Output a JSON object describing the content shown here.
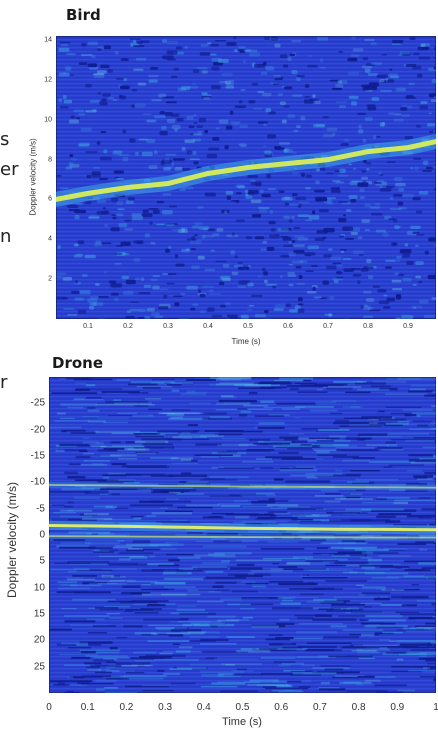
{
  "edge_fragments": [
    "s",
    "er",
    "n",
    "r"
  ],
  "chart_data": [
    {
      "type": "heatmap",
      "title": "Bird",
      "xlabel": "Time (s)",
      "ylabel": "Doppler velocity (m/s)",
      "xlim": [
        0.02,
        0.97
      ],
      "ylim": [
        14.2,
        0
      ],
      "xticks": [
        0.1,
        0.2,
        0.3,
        0.4,
        0.5,
        0.6,
        0.7,
        0.8,
        0.9
      ],
      "yticks": [
        2,
        4,
        6,
        8,
        10,
        12,
        14
      ],
      "xtick_labels": [
        "0.1",
        "0.2",
        "0.3",
        "0.4",
        "0.5",
        "0.6",
        "0.7",
        "0.8",
        "0.9"
      ],
      "ytick_labels": [
        "2",
        "4",
        "6",
        "8",
        "10",
        "12",
        "14"
      ],
      "colors": {
        "background": "#2a3fcf",
        "mid": "#3fa9e8",
        "peak": "#d7ee5a"
      },
      "series": [
        {
          "values": [
            {
              "x": 0.02,
              "y": 6.0
            },
            {
              "x": 0.1,
              "y": 6.3
            },
            {
              "x": 0.2,
              "y": 6.6
            },
            {
              "x": 0.3,
              "y": 6.8
            },
            {
              "x": 0.4,
              "y": 7.3
            },
            {
              "x": 0.5,
              "y": 7.6
            },
            {
              "x": 0.6,
              "y": 7.8
            },
            {
              "x": 0.7,
              "y": 8.0
            },
            {
              "x": 0.8,
              "y": 8.4
            },
            {
              "x": 0.9,
              "y": 8.6
            },
            {
              "x": 0.97,
              "y": 8.9
            }
          ]
        }
      ]
    },
    {
      "type": "heatmap",
      "title": "Drone",
      "xlabel": "Time (s)",
      "ylabel": "Doppler velocity (m/s)",
      "xlim": [
        0,
        1
      ],
      "ylim": [
        -30,
        30
      ],
      "xticks": [
        0,
        0.1,
        0.2,
        0.3,
        0.4,
        0.5,
        0.6,
        0.7,
        0.8,
        0.9,
        1
      ],
      "yticks": [
        -25,
        -20,
        -15,
        -10,
        -5,
        0,
        5,
        10,
        15,
        20,
        25
      ],
      "xtick_labels": [
        "0",
        "0.1",
        "0.2",
        "0.3",
        "0.4",
        "0.5",
        "0.6",
        "0.7",
        "0.8",
        "0.9",
        "1"
      ],
      "ytick_labels": [
        "-25",
        "-20",
        "-15",
        "-10",
        "-5",
        "0",
        "5",
        "10",
        "15",
        "20",
        "25"
      ],
      "colors": {
        "background": "#2a3fcf",
        "mid": "#3fa9e8",
        "peak": "#e7f06a"
      },
      "series": [
        {
          "values": [
            {
              "x": 0,
              "y": -1.8
            },
            {
              "x": 0.25,
              "y": -1.6
            },
            {
              "x": 0.5,
              "y": -1.3
            },
            {
              "x": 0.75,
              "y": -1.1
            },
            {
              "x": 1,
              "y": -1.0
            }
          ]
        },
        {
          "values": [
            {
              "x": 0,
              "y": 0.2
            },
            {
              "x": 0.5,
              "y": 0.4
            },
            {
              "x": 1,
              "y": 0.5
            }
          ]
        },
        {
          "values": [
            {
              "x": 0,
              "y": -9.5
            },
            {
              "x": 0.5,
              "y": -9.2
            },
            {
              "x": 1,
              "y": -9.0
            }
          ]
        }
      ]
    }
  ]
}
